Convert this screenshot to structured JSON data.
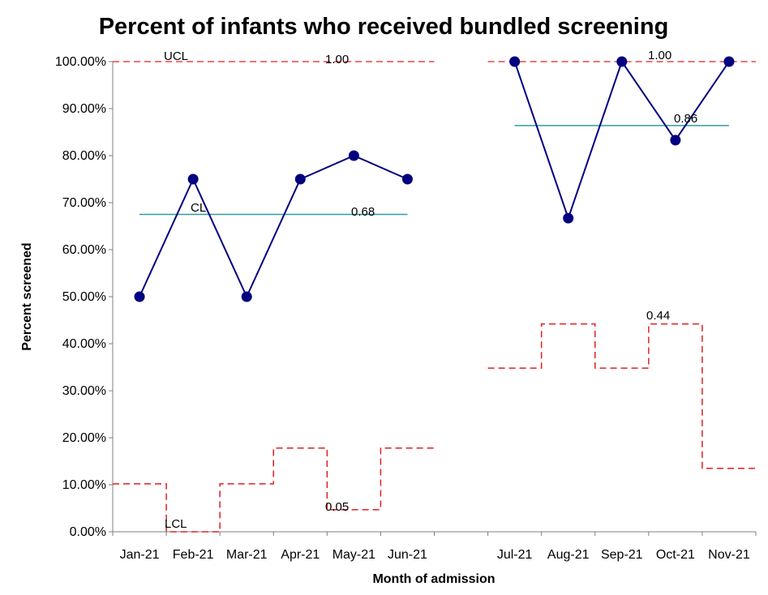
{
  "chart_data": {
    "type": "line",
    "title": "Percent of infants who received bundled screening",
    "xlabel": "Month of admission",
    "ylabel": "Percent screened",
    "ylim": [
      0,
      1
    ],
    "y_ticks": [
      0,
      0.1,
      0.2,
      0.3,
      0.4,
      0.5,
      0.6,
      0.7,
      0.8,
      0.9,
      1.0
    ],
    "y_tick_labels": [
      "0.00%",
      "10.00%",
      "20.00%",
      "30.00%",
      "40.00%",
      "50.00%",
      "60.00%",
      "70.00%",
      "80.00%",
      "90.00%",
      "100.00%"
    ],
    "slots": [
      "Jan-21",
      "Feb-21",
      "Mar-21",
      "Apr-21",
      "May-21",
      "Jun-21",
      "",
      "Jul-21",
      "Aug-21",
      "Sep-21",
      "Oct-21",
      "Nov-21"
    ],
    "phases": [
      {
        "categories": [
          "Jan-21",
          "Feb-21",
          "Mar-21",
          "Apr-21",
          "May-21",
          "Jun-21"
        ],
        "values": [
          0.5,
          0.75,
          0.5,
          0.75,
          0.8,
          0.75
        ],
        "ucl": [
          1.0,
          1.0,
          1.0,
          1.0,
          1.0,
          1.0
        ],
        "lcl": [
          0.102,
          0.0,
          0.102,
          0.178,
          0.047,
          0.178
        ],
        "cl": 0.675
      },
      {
        "categories": [
          "Jul-21",
          "Aug-21",
          "Sep-21",
          "Oct-21",
          "Nov-21"
        ],
        "values": [
          1.0,
          0.667,
          1.0,
          0.833,
          1.0
        ],
        "ucl": [
          1.0,
          1.0,
          1.0,
          1.0,
          1.0
        ],
        "lcl": [
          0.348,
          0.442,
          0.348,
          0.442,
          0.135
        ],
        "cl": 0.864
      }
    ],
    "annotations": [
      {
        "text": "UCL",
        "series": "ucl"
      },
      {
        "text": "1.00",
        "series": "ucl"
      },
      {
        "text": "CL",
        "series": "cl"
      },
      {
        "text": "0.68",
        "series": "cl"
      },
      {
        "text": "LCL",
        "series": "lcl"
      },
      {
        "text": "0.05",
        "series": "lcl"
      },
      {
        "text": "1.00",
        "series": "ucl"
      },
      {
        "text": "0.86",
        "series": "cl"
      },
      {
        "text": "0.44",
        "series": "lcl"
      }
    ],
    "colors": {
      "data": "#000080",
      "center": "#2E9CA6",
      "limits": "#E02020",
      "axis": "#7F7F7F"
    },
    "grid": false,
    "legend": "none"
  }
}
